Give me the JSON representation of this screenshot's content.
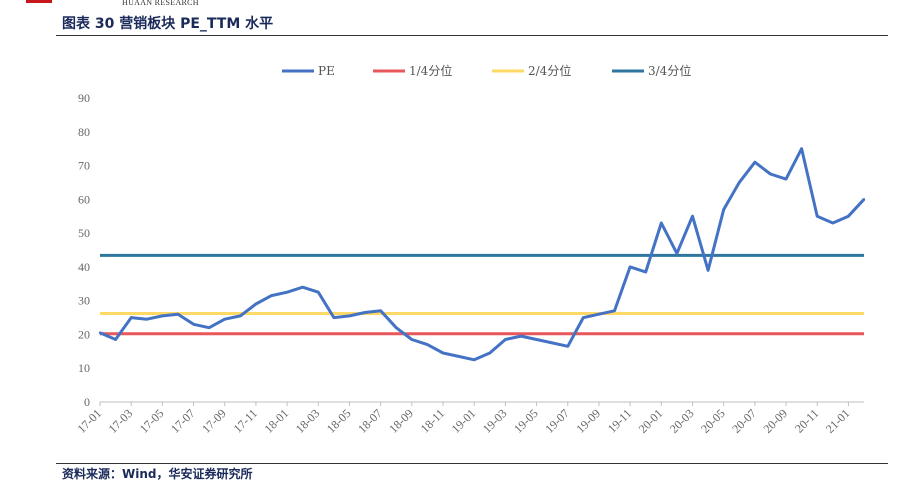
{
  "header": {
    "brand": "HUAAN RESEARCH",
    "title": "图表 30   营销板块 PE_TTM 水平"
  },
  "footer": {
    "source": "资料来源：Wind，华安证券研究所"
  },
  "chart_data": {
    "type": "line",
    "title": "",
    "xlabel": "",
    "ylabel": "",
    "ylim": [
      0,
      90
    ],
    "yticks": [
      0,
      10,
      20,
      30,
      40,
      50,
      60,
      70,
      80,
      90
    ],
    "x_tick_labels": [
      "17-01",
      "17-03",
      "17-05",
      "17-07",
      "17-09",
      "17-11",
      "18-01",
      "18-03",
      "18-05",
      "18-07",
      "18-09",
      "18-11",
      "19-01",
      "19-03",
      "19-05",
      "19-07",
      "19-09",
      "19-11",
      "20-01",
      "20-03",
      "20-05",
      "20-07",
      "20-09",
      "20-11",
      "21-01"
    ],
    "grid": false,
    "legend_position": "top",
    "series": [
      {
        "name": "PE",
        "color": "#4472c4",
        "x": [
          "17-01",
          "17-02",
          "17-03",
          "17-04",
          "17-05",
          "17-06",
          "17-07",
          "17-08",
          "17-09",
          "17-10",
          "17-11",
          "17-12",
          "18-01",
          "18-02",
          "18-03",
          "18-04",
          "18-05",
          "18-06",
          "18-07",
          "18-08",
          "18-09",
          "18-10",
          "18-11",
          "18-12",
          "19-01",
          "19-02",
          "19-03",
          "19-04",
          "19-05",
          "19-06",
          "19-07",
          "19-08",
          "19-09",
          "19-10",
          "19-11",
          "19-12",
          "20-01",
          "20-02",
          "20-03",
          "20-04",
          "20-05",
          "20-06",
          "20-07",
          "20-08",
          "20-09",
          "20-10",
          "20-11",
          "20-12",
          "21-01",
          "21-02"
        ],
        "values": [
          20.5,
          18.5,
          25,
          24.5,
          25.5,
          26,
          23,
          22,
          24.5,
          25.5,
          29,
          31.5,
          32.5,
          34,
          32.5,
          25,
          25.5,
          26.5,
          27,
          22,
          18.5,
          17,
          14.5,
          13.5,
          12.5,
          14.5,
          18.5,
          19.5,
          18.5,
          17.5,
          16.5,
          25,
          26,
          27,
          40,
          38.5,
          53,
          44,
          55,
          39,
          57,
          65,
          71,
          67.5,
          66,
          75,
          55,
          53,
          55,
          60
        ]
      },
      {
        "name": "1/4分位",
        "color": "#e8575a",
        "constant": 20.2
      },
      {
        "name": "2/4分位",
        "color": "#ffd966",
        "constant": 26.2
      },
      {
        "name": "3/4分位",
        "color": "#2e75a0",
        "constant": 43.4
      }
    ]
  }
}
